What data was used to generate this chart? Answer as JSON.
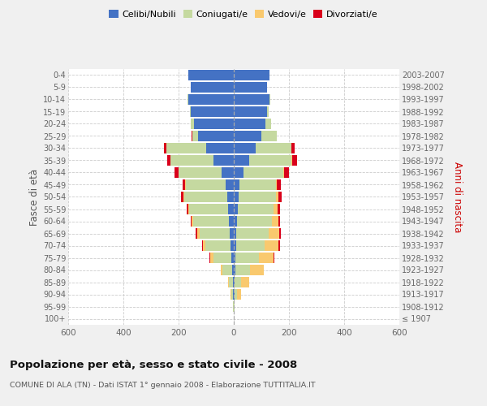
{
  "age_groups": [
    "100+",
    "95-99",
    "90-94",
    "85-89",
    "80-84",
    "75-79",
    "70-74",
    "65-69",
    "60-64",
    "55-59",
    "50-54",
    "45-49",
    "40-44",
    "35-39",
    "30-34",
    "25-29",
    "20-24",
    "15-19",
    "10-14",
    "5-9",
    "0-4"
  ],
  "birth_years": [
    "≤ 1907",
    "1908-1912",
    "1913-1917",
    "1918-1922",
    "1923-1927",
    "1928-1932",
    "1933-1937",
    "1938-1942",
    "1943-1947",
    "1948-1952",
    "1953-1957",
    "1958-1962",
    "1963-1967",
    "1968-1972",
    "1973-1977",
    "1978-1982",
    "1983-1987",
    "1988-1992",
    "1993-1997",
    "1998-2002",
    "2003-2007"
  ],
  "male": {
    "celibi": [
      0,
      0,
      2,
      2,
      5,
      8,
      12,
      15,
      18,
      22,
      25,
      30,
      45,
      75,
      100,
      130,
      145,
      155,
      165,
      155,
      165
    ],
    "coniugati": [
      0,
      2,
      8,
      15,
      35,
      65,
      90,
      110,
      130,
      140,
      155,
      145,
      155,
      155,
      145,
      20,
      10,
      3,
      2,
      0,
      0
    ],
    "vedovi": [
      0,
      0,
      2,
      3,
      8,
      12,
      10,
      8,
      5,
      3,
      2,
      1,
      0,
      0,
      0,
      0,
      0,
      0,
      0,
      0,
      0
    ],
    "divorziati": [
      0,
      0,
      0,
      0,
      0,
      2,
      3,
      4,
      4,
      6,
      8,
      10,
      15,
      12,
      8,
      2,
      0,
      0,
      0,
      0,
      0
    ]
  },
  "female": {
    "nubili": [
      0,
      0,
      2,
      2,
      5,
      5,
      8,
      10,
      12,
      15,
      18,
      22,
      35,
      55,
      80,
      100,
      115,
      120,
      130,
      120,
      130
    ],
    "coniugate": [
      0,
      2,
      10,
      25,
      55,
      85,
      105,
      115,
      125,
      130,
      135,
      130,
      145,
      155,
      130,
      55,
      20,
      5,
      2,
      0,
      0
    ],
    "vedove": [
      0,
      2,
      15,
      30,
      50,
      55,
      50,
      40,
      25,
      15,
      8,
      5,
      2,
      2,
      0,
      0,
      0,
      0,
      0,
      0,
      0
    ],
    "divorziate": [
      0,
      0,
      0,
      0,
      0,
      2,
      4,
      5,
      5,
      8,
      12,
      15,
      18,
      18,
      10,
      2,
      0,
      0,
      0,
      0,
      0
    ]
  },
  "colors": {
    "celibi": "#4472c4",
    "coniugati": "#c5d9a0",
    "vedovi": "#f9c96e",
    "divorziati": "#d9001b"
  },
  "title": "Popolazione per età, sesso e stato civile - 2008",
  "subtitle": "COMUNE DI ALA (TN) - Dati ISTAT 1° gennaio 2008 - Elaborazione TUTTITALIA.IT",
  "ylabel_left": "Fasce di età",
  "ylabel_right": "Anni di nascita",
  "xlim": 600,
  "bg_color": "#f0f0f0",
  "plot_bg": "#ffffff",
  "grid_color": "#cccccc"
}
